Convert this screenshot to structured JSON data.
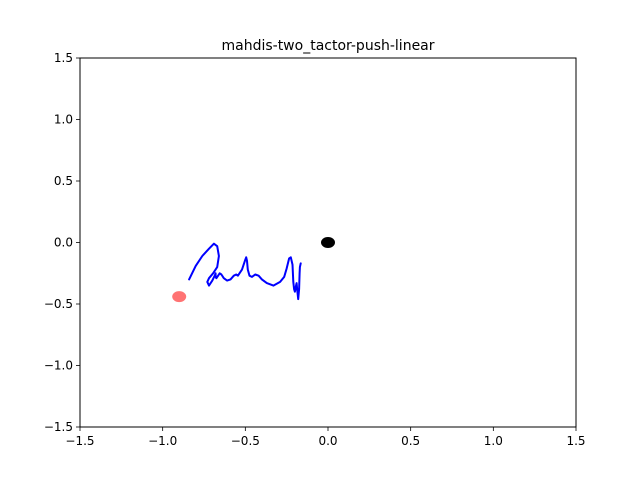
{
  "chart_data": {
    "type": "scatter",
    "title": "mahdis-two_tactor-push-linear",
    "xlabel": "",
    "ylabel": "",
    "xlim": [
      -1.5,
      1.5
    ],
    "ylim": [
      -1.5,
      1.5
    ],
    "x_ticks": [
      -1.5,
      -1.0,
      -0.5,
      0.0,
      0.5,
      1.0,
      1.5
    ],
    "x_tick_labels": [
      "−1.5",
      "−1.0",
      "−0.5",
      "0.0",
      "0.5",
      "1.0",
      "1.5"
    ],
    "y_ticks": [
      1.5,
      1.0,
      0.5,
      0.0,
      -0.5,
      -1.0,
      -1.5
    ],
    "y_tick_labels": [
      "1.5",
      "1.0",
      "0.5",
      "0.0",
      "−0.5",
      "−1.0",
      "−1.5"
    ],
    "grid": false,
    "series": [
      {
        "kind": "line",
        "color": "#0000ff",
        "x": [
          -0.84,
          -0.8,
          -0.76,
          -0.72,
          -0.69,
          -0.67,
          -0.66,
          -0.67,
          -0.695,
          -0.72,
          -0.73,
          -0.72,
          -0.7,
          -0.685,
          -0.68,
          -0.68,
          -0.675,
          -0.665,
          -0.655,
          -0.645,
          -0.63,
          -0.61,
          -0.59,
          -0.57,
          -0.555,
          -0.545,
          -0.52,
          -0.5,
          -0.495,
          -0.49,
          -0.485,
          -0.475,
          -0.46,
          -0.44,
          -0.42,
          -0.4,
          -0.37,
          -0.33,
          -0.29,
          -0.265,
          -0.25,
          -0.235,
          -0.225,
          -0.215,
          -0.21,
          -0.205,
          -0.2,
          -0.195,
          -0.19,
          -0.185,
          -0.18,
          -0.175,
          -0.172,
          -0.17,
          -0.165
        ],
        "y": [
          -0.3,
          -0.19,
          -0.11,
          -0.05,
          -0.01,
          -0.03,
          -0.11,
          -0.2,
          -0.25,
          -0.29,
          -0.32,
          -0.35,
          -0.31,
          -0.27,
          -0.25,
          -0.28,
          -0.29,
          -0.27,
          -0.25,
          -0.26,
          -0.29,
          -0.31,
          -0.3,
          -0.27,
          -0.26,
          -0.27,
          -0.22,
          -0.14,
          -0.12,
          -0.15,
          -0.22,
          -0.27,
          -0.28,
          -0.26,
          -0.27,
          -0.3,
          -0.33,
          -0.35,
          -0.32,
          -0.28,
          -0.21,
          -0.13,
          -0.12,
          -0.18,
          -0.32,
          -0.38,
          -0.4,
          -0.36,
          -0.33,
          -0.4,
          -0.46,
          -0.38,
          -0.25,
          -0.2,
          -0.17
        ]
      },
      {
        "kind": "point",
        "color": "#000000",
        "alpha": 1.0,
        "x": [
          0.0
        ],
        "y": [
          0.0
        ]
      },
      {
        "kind": "point",
        "color": "#ff0000",
        "alpha": 0.55,
        "x": [
          -0.9
        ],
        "y": [
          -0.44
        ]
      }
    ]
  }
}
